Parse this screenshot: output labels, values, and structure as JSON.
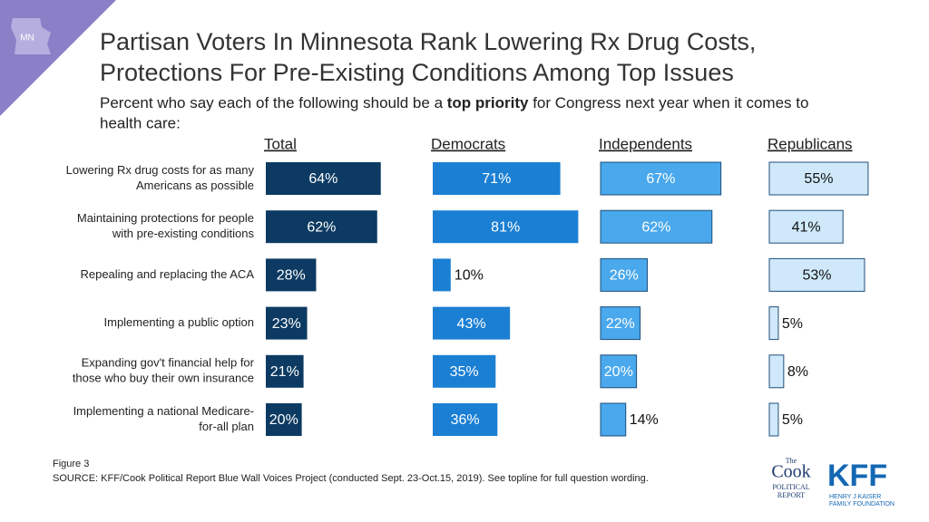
{
  "chart_data": {
    "type": "bar",
    "badge": "MN",
    "title": [
      "Partisan Voters In Minnesota Rank Lowering Rx Drug Costs,",
      "Protections For Pre-Existing Conditions Among Top Issues"
    ],
    "subtitle": [
      "Percent who say each of the following should be a ",
      "top priority",
      " for Congress next year when it comes to",
      "health care:"
    ],
    "categories": [
      [
        "Lowering Rx drug costs for as many",
        "Americans as possible"
      ],
      [
        "Maintaining protections for people",
        "with pre-existing conditions"
      ],
      [
        "Repealing and replacing the ACA"
      ],
      [
        "Implementing a public option"
      ],
      [
        "Expanding gov't financial help for",
        "those who buy their own insurance"
      ],
      [
        "Implementing a national Medicare-",
        "for-all plan"
      ]
    ],
    "series": [
      {
        "name": "Total",
        "color": "#0c3a62",
        "label_color": "#ffffff",
        "values": [
          64,
          62,
          28,
          23,
          21,
          20
        ],
        "value_labels": [
          "64%",
          "62%",
          "28%",
          "23%",
          "21%",
          "20%"
        ]
      },
      {
        "name": "Democrats",
        "color": "#1b7fd3",
        "label_color": "#ffffff",
        "values": [
          71,
          81,
          10,
          43,
          35,
          36
        ],
        "value_labels": [
          "71%",
          "81%",
          "10%",
          "43%",
          "35%",
          "36%"
        ]
      },
      {
        "name": "Independents",
        "color": "#4aa8ec",
        "label_color": "#ffffff",
        "values": [
          67,
          62,
          26,
          22,
          20,
          14
        ],
        "value_labels": [
          "67%",
          "62%",
          "26%",
          "22%",
          "20%",
          "14%"
        ]
      },
      {
        "name": "Republicans",
        "color": "#cfe9fb",
        "label_color": "#111111",
        "values": [
          55,
          41,
          53,
          5,
          8,
          5
        ],
        "value_labels": [
          "55%",
          "41%",
          "53%",
          "5%",
          "8%",
          "5%"
        ]
      }
    ],
    "figure": "Figure 3",
    "source": "SOURCE: KFF/Cook Political Report Blue Wall Voices Project (conducted Sept. 23-Oct.15, 2019). See topline for full question wording.",
    "logos": {
      "cook": [
        "The",
        "Cook",
        "POLITICAL",
        "REPORT"
      ],
      "kff": [
        "KFF",
        "HENRY J KAISER",
        "FAMILY FOUNDATION"
      ]
    }
  }
}
